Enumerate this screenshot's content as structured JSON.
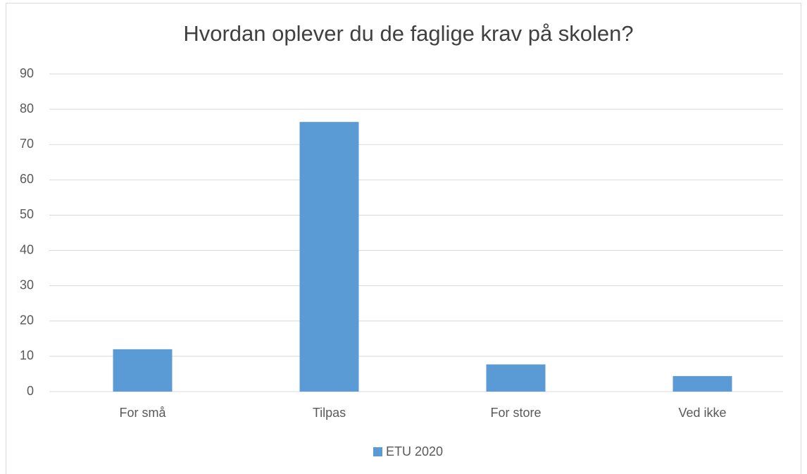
{
  "chart_data": {
    "type": "bar",
    "title": "Hvordan oplever du de faglige krav på skolen?",
    "categories": [
      "For små",
      "Tilpas",
      "For store",
      "Ved ikke"
    ],
    "series": [
      {
        "name": "ETU 2020",
        "color": "#5b9bd5",
        "values": [
          12,
          76.4,
          7.7,
          4.4
        ]
      }
    ],
    "ylim": [
      0,
      90
    ],
    "yticks": [
      0,
      10,
      20,
      30,
      40,
      50,
      60,
      70,
      80,
      90
    ],
    "grid": true,
    "legend": "bottom"
  }
}
